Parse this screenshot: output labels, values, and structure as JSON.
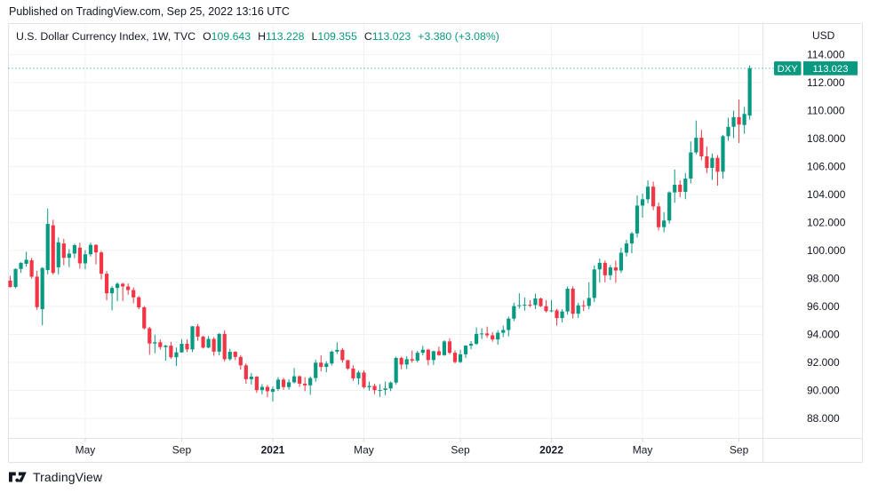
{
  "header": {
    "published": "Published on TradingView.com, Sep 25, 2022 13:16 UTC"
  },
  "legend": {
    "title": "U.S. Dollar Currency Index, 1W, TVC",
    "open_label": "O",
    "open": "109.643",
    "high_label": "H",
    "high": "113.228",
    "low_label": "L",
    "low": "109.355",
    "close_label": "C",
    "close": "113.023",
    "change": "+3.380 (+3.08%)"
  },
  "price_axis": {
    "currency": "USD",
    "tick_min": 88,
    "tick_max": 114,
    "tick_step": 2,
    "decimals": 3,
    "symbol_badge": "DXY",
    "last_price": "113.023"
  },
  "time_axis": {
    "ticks": [
      {
        "label": "May",
        "index": 14,
        "bold": false
      },
      {
        "label": "Sep",
        "index": 32,
        "bold": false
      },
      {
        "label": "2021",
        "index": 49,
        "bold": true
      },
      {
        "label": "May",
        "index": 66,
        "bold": false
      },
      {
        "label": "Sep",
        "index": 84,
        "bold": false
      },
      {
        "label": "2022",
        "index": 101,
        "bold": true
      },
      {
        "label": "May",
        "index": 118,
        "bold": false
      },
      {
        "label": "Sep",
        "index": 136,
        "bold": false
      }
    ]
  },
  "footer": {
    "brand": "TradingView"
  },
  "colors": {
    "up": "#089981",
    "down": "#F23645",
    "accent": "#089981",
    "grid": "#F0F2F5",
    "border": "#E0E3EB",
    "tick": "#D5D8DE",
    "text": "#131722",
    "badge_text": "#FFFFFF",
    "background": "#FFFFFF"
  },
  "chart_data": {
    "type": "candlestick",
    "title": "U.S. Dollar Currency Index",
    "symbol": "DXY",
    "exchange": "TVC",
    "interval": "1W",
    "unit": "USD",
    "start_week": "2020-01-27",
    "last_close": 113.023,
    "ylim": [
      86.6,
      116.0
    ],
    "grid": true,
    "ohlc_format": [
      "open",
      "high",
      "low",
      "close"
    ],
    "ohlc": [
      [
        97.85,
        98.19,
        97.35,
        97.39
      ],
      [
        97.39,
        98.72,
        97.31,
        98.68
      ],
      [
        98.68,
        99.16,
        98.4,
        99.12
      ],
      [
        99.05,
        99.91,
        98.85,
        99.34
      ],
      [
        99.3,
        99.47,
        97.99,
        98.13
      ],
      [
        98.13,
        98.55,
        95.75,
        95.95
      ],
      [
        95.8,
        98.8,
        94.65,
        98.75
      ],
      [
        98.6,
        103.0,
        98.3,
        101.9
      ],
      [
        101.8,
        102.2,
        98.27,
        98.4
      ],
      [
        98.8,
        100.93,
        98.3,
        100.58
      ],
      [
        100.5,
        100.83,
        98.95,
        99.48
      ],
      [
        99.48,
        100.1,
        98.81,
        99.78
      ],
      [
        99.78,
        100.48,
        99.45,
        100.38
      ],
      [
        100.2,
        100.55,
        98.7,
        99.08
      ],
      [
        99.08,
        100.03,
        98.65,
        99.73
      ],
      [
        99.73,
        100.56,
        99.57,
        100.4
      ],
      [
        100.4,
        100.45,
        99.01,
        99.86
      ],
      [
        99.86,
        99.97,
        97.94,
        98.34
      ],
      [
        98.34,
        98.52,
        96.44,
        96.94
      ],
      [
        96.94,
        97.45,
        95.72,
        97.32
      ],
      [
        97.32,
        97.74,
        96.37,
        97.62
      ],
      [
        97.62,
        97.7,
        96.39,
        97.43
      ],
      [
        97.43,
        97.64,
        96.84,
        97.17
      ],
      [
        97.17,
        97.37,
        96.23,
        96.65
      ],
      [
        96.65,
        96.75,
        95.8,
        95.94
      ],
      [
        95.94,
        96.03,
        94.35,
        94.44
      ],
      [
        94.44,
        94.55,
        92.55,
        93.35
      ],
      [
        93.35,
        93.99,
        92.65,
        93.44
      ],
      [
        93.44,
        93.65,
        92.92,
        93.1
      ],
      [
        93.1,
        93.25,
        92.13,
        93.2
      ],
      [
        93.2,
        93.47,
        92.26,
        92.37
      ],
      [
        92.37,
        93.07,
        91.74,
        92.72
      ],
      [
        92.72,
        93.66,
        92.7,
        93.33
      ],
      [
        93.33,
        93.64,
        92.75,
        92.93
      ],
      [
        92.93,
        94.6,
        92.74,
        94.58
      ],
      [
        94.58,
        94.74,
        93.55,
        93.84
      ],
      [
        93.84,
        93.9,
        92.99,
        93.06
      ],
      [
        93.06,
        93.89,
        93.01,
        93.68
      ],
      [
        93.68,
        93.81,
        92.47,
        92.77
      ],
      [
        92.77,
        94.09,
        92.5,
        94.04
      ],
      [
        94.04,
        94.3,
        92.07,
        92.23
      ],
      [
        92.23,
        92.97,
        92.13,
        92.76
      ],
      [
        92.76,
        92.8,
        92.16,
        92.39
      ],
      [
        92.39,
        92.52,
        91.49,
        91.79
      ],
      [
        91.79,
        91.93,
        90.47,
        90.8
      ],
      [
        90.8,
        91.24,
        90.42,
        90.98
      ],
      [
        90.98,
        91.02,
        89.82,
        90.02
      ],
      [
        90.02,
        90.45,
        89.72,
        90.25
      ],
      [
        90.25,
        90.4,
        89.52,
        89.94
      ],
      [
        89.9,
        90.28,
        89.21,
        90.1
      ],
      [
        90.1,
        90.95,
        89.95,
        90.77
      ],
      [
        90.77,
        90.9,
        90.04,
        90.24
      ],
      [
        90.24,
        90.79,
        90.05,
        90.58
      ],
      [
        90.58,
        91.6,
        90.5,
        91.01
      ],
      [
        91.01,
        91.06,
        90.25,
        90.48
      ],
      [
        90.48,
        90.94,
        89.94,
        90.36
      ],
      [
        90.36,
        91.0,
        89.68,
        90.88
      ],
      [
        90.88,
        92.2,
        90.62,
        91.98
      ],
      [
        91.98,
        92.51,
        91.36,
        91.68
      ],
      [
        91.68,
        92.08,
        91.3,
        91.92
      ],
      [
        91.92,
        92.85,
        91.77,
        92.77
      ],
      [
        92.77,
        93.44,
        92.6,
        92.9
      ],
      [
        92.9,
        93.03,
        91.98,
        92.16
      ],
      [
        92.16,
        92.18,
        91.46,
        91.56
      ],
      [
        91.56,
        91.79,
        90.68,
        90.86
      ],
      [
        90.86,
        91.42,
        90.42,
        91.28
      ],
      [
        91.28,
        91.44,
        90.13,
        90.23
      ],
      [
        90.23,
        90.63,
        89.98,
        90.32
      ],
      [
        90.32,
        90.47,
        89.74,
        90.02
      ],
      [
        90.02,
        90.45,
        89.53,
        90.03
      ],
      [
        90.03,
        90.63,
        89.66,
        90.14
      ],
      [
        90.14,
        90.64,
        89.95,
        90.56
      ],
      [
        90.56,
        92.41,
        90.42,
        92.32
      ],
      [
        92.32,
        92.41,
        91.51,
        91.85
      ],
      [
        91.85,
        92.45,
        91.52,
        92.23
      ],
      [
        92.23,
        92.85,
        91.99,
        92.13
      ],
      [
        92.13,
        92.83,
        92.0,
        92.69
      ],
      [
        92.69,
        93.19,
        92.51,
        92.91
      ],
      [
        92.91,
        92.98,
        91.78,
        92.17
      ],
      [
        92.17,
        92.84,
        91.82,
        92.8
      ],
      [
        92.8,
        93.13,
        92.47,
        92.52
      ],
      [
        92.52,
        93.59,
        92.47,
        93.5
      ],
      [
        93.5,
        93.73,
        92.58,
        92.69
      ],
      [
        92.69,
        92.86,
        91.94,
        92.03
      ],
      [
        92.03,
        92.89,
        91.95,
        92.58
      ],
      [
        92.58,
        93.22,
        92.32,
        93.2
      ],
      [
        93.2,
        93.53,
        92.94,
        93.33
      ],
      [
        93.33,
        94.5,
        93.25,
        94.04
      ],
      [
        94.04,
        94.45,
        93.68,
        94.07
      ],
      [
        94.07,
        94.56,
        93.76,
        93.94
      ],
      [
        93.94,
        94.17,
        93.48,
        93.64
      ],
      [
        93.64,
        94.31,
        93.27,
        94.12
      ],
      [
        94.12,
        94.63,
        93.81,
        94.32
      ],
      [
        94.32,
        95.27,
        93.87,
        95.13
      ],
      [
        95.13,
        96.27,
        94.96,
        96.03
      ],
      [
        96.03,
        96.94,
        95.85,
        96.09
      ],
      [
        96.09,
        96.65,
        95.7,
        96.12
      ],
      [
        96.12,
        96.45,
        95.94,
        96.1
      ],
      [
        96.1,
        96.91,
        95.82,
        96.57
      ],
      [
        96.57,
        96.63,
        95.96,
        96.02
      ],
      [
        96.02,
        96.46,
        95.57,
        95.67
      ],
      [
        95.67,
        96.46,
        95.58,
        95.72
      ],
      [
        95.72,
        95.83,
        94.63,
        95.17
      ],
      [
        95.17,
        95.8,
        94.86,
        95.64
      ],
      [
        95.64,
        97.44,
        95.41,
        97.27
      ],
      [
        97.27,
        97.44,
        95.14,
        95.48
      ],
      [
        95.48,
        96.26,
        95.17,
        96.08
      ],
      [
        96.08,
        96.43,
        95.67,
        96.04
      ],
      [
        96.04,
        97.74,
        95.8,
        96.61
      ],
      [
        96.61,
        98.93,
        96.32,
        98.65
      ],
      [
        98.65,
        99.42,
        97.71,
        99.12
      ],
      [
        99.12,
        99.29,
        97.72,
        98.23
      ],
      [
        98.23,
        98.96,
        97.9,
        98.79
      ],
      [
        98.79,
        99.28,
        97.68,
        98.57
      ],
      [
        98.57,
        100.19,
        98.4,
        99.84
      ],
      [
        99.84,
        100.76,
        99.57,
        100.5
      ],
      [
        100.5,
        101.33,
        99.81,
        101.22
      ],
      [
        101.22,
        103.93,
        100.93,
        103.21
      ],
      [
        103.21,
        104.07,
        102.35,
        103.66
      ],
      [
        103.66,
        105.01,
        103.37,
        104.56
      ],
      [
        104.56,
        104.92,
        102.88,
        103.15
      ],
      [
        103.15,
        103.43,
        101.43,
        101.67
      ],
      [
        101.67,
        102.73,
        101.3,
        102.14
      ],
      [
        102.14,
        104.23,
        101.93,
        104.15
      ],
      [
        104.15,
        105.79,
        103.41,
        104.7
      ],
      [
        104.7,
        105.01,
        103.81,
        104.19
      ],
      [
        104.19,
        105.54,
        103.67,
        105.14
      ],
      [
        105.14,
        107.79,
        104.79,
        107.01
      ],
      [
        107.01,
        109.29,
        106.87,
        108.06
      ],
      [
        108.06,
        108.62,
        106.45,
        106.73
      ],
      [
        106.73,
        107.43,
        105.53,
        105.9
      ],
      [
        105.9,
        106.93,
        105.04,
        106.62
      ],
      [
        106.62,
        106.81,
        104.64,
        105.63
      ],
      [
        105.63,
        108.26,
        105.15,
        108.17
      ],
      [
        108.17,
        109.48,
        107.85,
        108.84
      ],
      [
        108.84,
        110.0,
        108.03,
        109.53
      ],
      [
        109.53,
        110.79,
        107.68,
        109.0
      ],
      [
        108.97,
        110.26,
        108.35,
        109.76
      ],
      [
        109.643,
        113.228,
        109.355,
        113.023
      ]
    ]
  }
}
